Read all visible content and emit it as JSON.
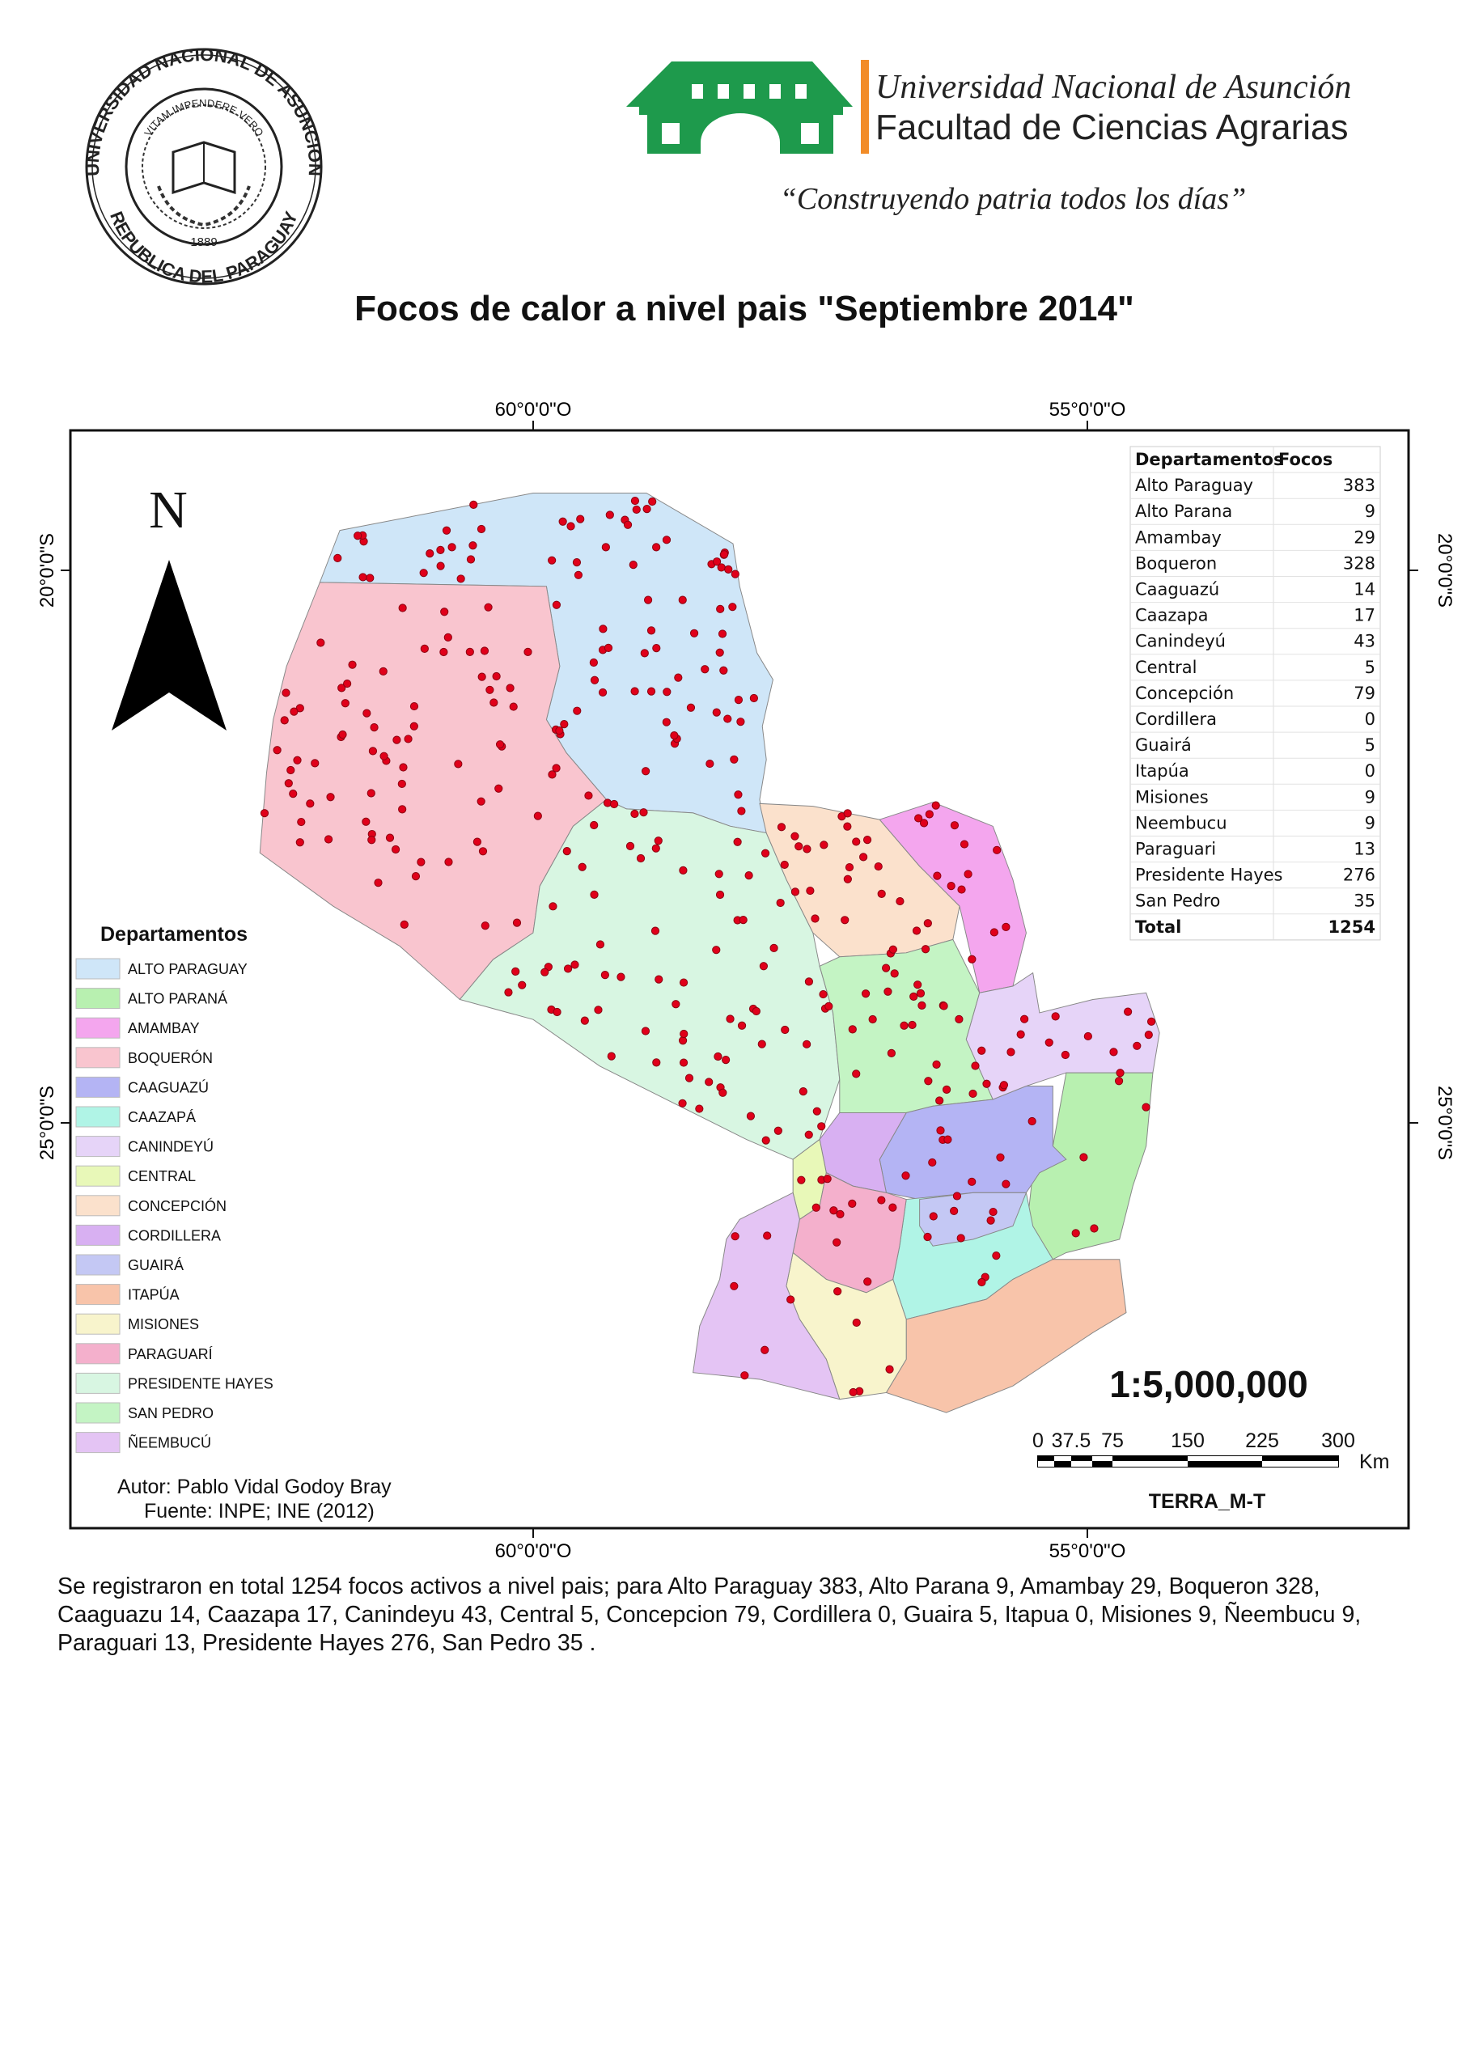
{
  "header": {
    "seal": {
      "ring_top": "UNIVERSIDAD NACIONAL DE ASUNCION",
      "ring_bottom": "REPUBLICA DEL PARAGUAY",
      "motto": "VITAM IMPENDERE VERO",
      "year": "1889"
    },
    "university": "Universidad Nacional de Asunción",
    "faculty": "Facultad de Ciencias Agrarias",
    "slogan": "“Construyendo patria todos los días”"
  },
  "title": "Focos de calor a nivel pais \"Septiembre 2014\"",
  "map": {
    "coords": {
      "top": [
        "60°0'0\"O",
        "55°0'0\"O"
      ],
      "bottom": [
        "60°0'0\"O",
        "55°0'0\"O"
      ],
      "left": [
        "20°0'0\"S",
        "25°0'0\"S"
      ],
      "right": [
        "20°0'0\"S",
        "25°0'0\"S"
      ]
    },
    "north": "N",
    "table": {
      "header": [
        "Departamentos",
        "Focos"
      ],
      "rows": [
        [
          "Alto Paraguay",
          383
        ],
        [
          "Alto Parana",
          9
        ],
        [
          "Amambay",
          29
        ],
        [
          "Boqueron",
          328
        ],
        [
          "Caaguazú",
          14
        ],
        [
          "Caazapa",
          17
        ],
        [
          "Canindeyú",
          43
        ],
        [
          "Central",
          5
        ],
        [
          "Concepción",
          79
        ],
        [
          "Cordillera",
          0
        ],
        [
          "Guairá",
          5
        ],
        [
          "Itapúa",
          0
        ],
        [
          "Misiones",
          9
        ],
        [
          "Neembucu",
          9
        ],
        [
          "Paraguari",
          13
        ],
        [
          "Presidente Hayes",
          276
        ],
        [
          "San Pedro",
          35
        ]
      ],
      "total": [
        "Total",
        1254
      ]
    },
    "legend": {
      "title": "Departamentos",
      "items": [
        {
          "label": "ALTO PARAGUAY",
          "color": "#cfe6f8"
        },
        {
          "label": "ALTO PARANÁ",
          "color": "#b8f0b0"
        },
        {
          "label": "AMAMBAY",
          "color": "#f4a6ee"
        },
        {
          "label": "BOQUERÓN",
          "color": "#f9c5cf"
        },
        {
          "label": "CAAGUAZÚ",
          "color": "#b4b4f4"
        },
        {
          "label": "CAAZAPÁ",
          "color": "#b0f4e6"
        },
        {
          "label": "CANINDEYÚ",
          "color": "#e6d4f8"
        },
        {
          "label": "CENTRAL",
          "color": "#e8f8b8"
        },
        {
          "label": "CONCEPCIÓN",
          "color": "#fbe1cc"
        },
        {
          "label": "CORDILLERA",
          "color": "#d8b0f2"
        },
        {
          "label": "GUAIRÁ",
          "color": "#c4c8f4"
        },
        {
          "label": "ITAPÚA",
          "color": "#f8c4aa"
        },
        {
          "label": "MISIONES",
          "color": "#f8f4cc"
        },
        {
          "label": "PARAGUARÍ",
          "color": "#f4b0cc"
        },
        {
          "label": "PRESIDENTE HAYES",
          "color": "#d8f6e2"
        },
        {
          "label": "SAN PEDRO",
          "color": "#c4f4c4"
        },
        {
          "label": "ÑEEMBUCÚ",
          "color": "#e4c4f4"
        }
      ]
    },
    "author": "Autor: Pablo Vidal Godoy Bray",
    "source": "Fuente: INPE; INE (2012)",
    "scale": "1:5,000,000",
    "scale_bar": {
      "labels": [
        "0",
        "37.5",
        "75",
        "150",
        "225",
        "300"
      ],
      "unit": "Km"
    },
    "credit": "TERRA_M-T"
  },
  "summary": "Se registraron en total 1254 focos activos a nivel pais; para Alto Paraguay 383, Alto Parana 9, Amambay 29, Boqueron 328, Caaguazu 14, Caazapa 17, Canindeyu 43, Central 5, Concepcion 79, Cordillera 0, Guaira 5, Itapua 0, Misiones 9, Ñeembucu 9, Paraguari 13, Presidente Hayes 276, San Pedro 35 ."
}
